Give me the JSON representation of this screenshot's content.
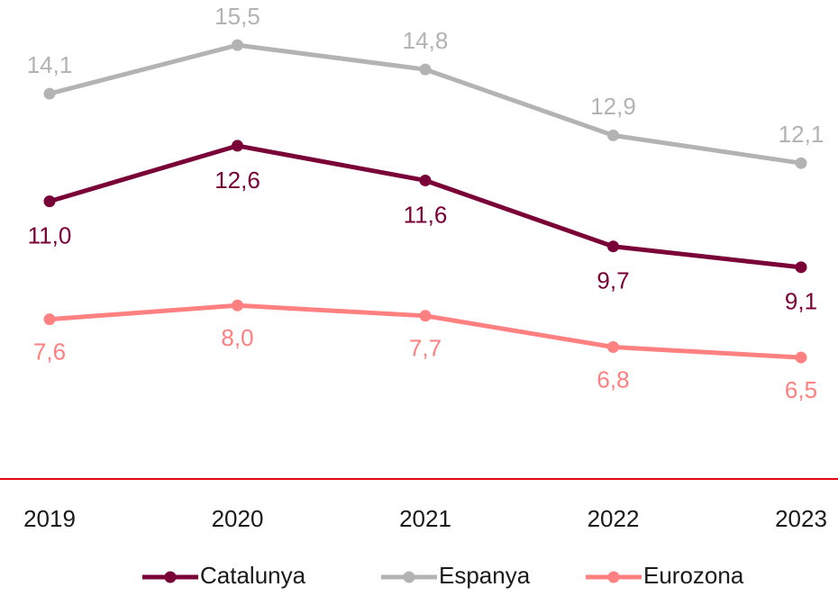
{
  "chart_data": {
    "type": "line",
    "categories": [
      "2019",
      "2020",
      "2021",
      "2022",
      "2023"
    ],
    "series": [
      {
        "name": "Catalunya",
        "color": "#7a0038",
        "values": [
          11.0,
          12.6,
          11.6,
          9.7,
          9.1
        ],
        "value_labels": [
          "11,0",
          "12,6",
          "11,6",
          "9,7",
          "9,1"
        ]
      },
      {
        "name": "Espanya",
        "color": "#b3b3b3",
        "values": [
          14.1,
          15.5,
          14.8,
          12.9,
          12.1
        ],
        "value_labels": [
          "14,1",
          "15,5",
          "14,8",
          "12,9",
          "12,1"
        ]
      },
      {
        "name": "Eurozona",
        "color": "#ff8080",
        "values": [
          7.6,
          8.0,
          7.7,
          6.8,
          6.5
        ],
        "value_labels": [
          "7,6",
          "8,0",
          "7,7",
          "6,8",
          "6,5"
        ]
      }
    ],
    "ylim": [
      3,
      16.8
    ],
    "axis_color": "#e30613",
    "legend": "bottom"
  }
}
